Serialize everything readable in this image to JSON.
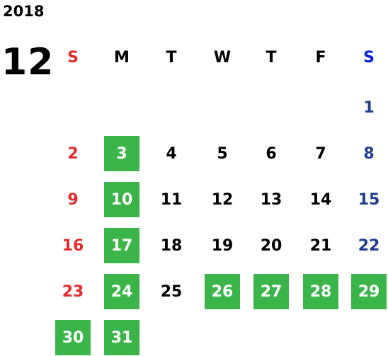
{
  "year": "2018",
  "month": "12",
  "weekdays": [
    "S",
    "M",
    "T",
    "W",
    "T",
    "F",
    "S"
  ],
  "weekday_colors": [
    "#e32b2b",
    "#000000",
    "#000000",
    "#000000",
    "#000000",
    "#000000",
    "#0a1fe0"
  ],
  "day_colors": [
    "#e32b2b",
    "#000000",
    "#000000",
    "#000000",
    "#000000",
    "#000000",
    "#1f3c8f"
  ],
  "highlight_color": "#3bb54a",
  "highlighted_text_color": "#ffffff",
  "weeks": [
    [
      null,
      null,
      null,
      null,
      null,
      null,
      1
    ],
    [
      2,
      3,
      4,
      5,
      6,
      7,
      8
    ],
    [
      9,
      10,
      11,
      12,
      13,
      14,
      15
    ],
    [
      16,
      17,
      18,
      19,
      20,
      21,
      22
    ],
    [
      23,
      24,
      25,
      26,
      27,
      28,
      29
    ],
    [
      30,
      31,
      null,
      null,
      null,
      null,
      null
    ]
  ],
  "highlighted": [
    3,
    10,
    17,
    24,
    26,
    27,
    28,
    29,
    30,
    31
  ]
}
